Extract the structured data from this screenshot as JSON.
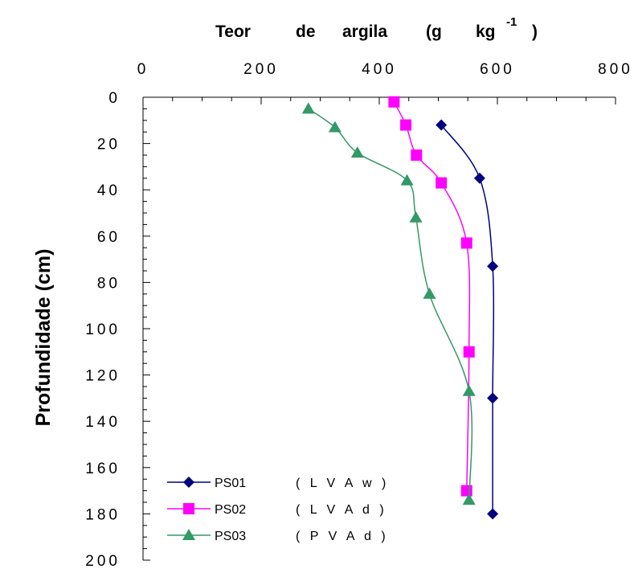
{
  "chart_data": {
    "type": "line",
    "title_parts": [
      "Teor",
      "de",
      "argila",
      "(g",
      "kg"
    ],
    "title_superscript": "-1",
    "title_close": ")",
    "ylabel": "Profundidade (cm)",
    "x_axis": {
      "position": "top",
      "min": 0,
      "max": 800,
      "major_step": 200,
      "minor_step": 50,
      "tick_labels": [
        "0",
        "200",
        "400",
        "600",
        "800"
      ]
    },
    "y_axis": {
      "inverted": true,
      "min": 0,
      "max": 200,
      "major_step": 20,
      "minor_step": 5,
      "tick_labels": [
        "0",
        "20",
        "40",
        "60",
        "80",
        "100",
        "120",
        "140",
        "160",
        "180",
        "200"
      ]
    },
    "grid": false,
    "legend_position": "bottom-left",
    "series": [
      {
        "name": "PS01",
        "code": "( L V A w )",
        "color": "#000080",
        "marker": "diamond",
        "points": [
          [
            505,
            12
          ],
          [
            570,
            35
          ],
          [
            592,
            73
          ],
          [
            592,
            130
          ],
          [
            592,
            180
          ]
        ]
      },
      {
        "name": "PS02",
        "code": "( L V A d )",
        "color": "#ff00ff",
        "marker": "square",
        "points": [
          [
            425,
            2
          ],
          [
            445,
            12
          ],
          [
            463,
            25
          ],
          [
            505,
            37
          ],
          [
            548,
            63
          ],
          [
            552,
            110
          ],
          [
            548,
            170
          ]
        ]
      },
      {
        "name": "PS03",
        "code": "( P V A d )",
        "color": "#339966",
        "marker": "triangle",
        "points": [
          [
            280,
            5
          ],
          [
            325,
            13
          ],
          [
            363,
            24
          ],
          [
            447,
            36
          ],
          [
            462,
            52
          ],
          [
            485,
            85
          ],
          [
            552,
            127
          ],
          [
            552,
            174
          ]
        ]
      }
    ]
  }
}
